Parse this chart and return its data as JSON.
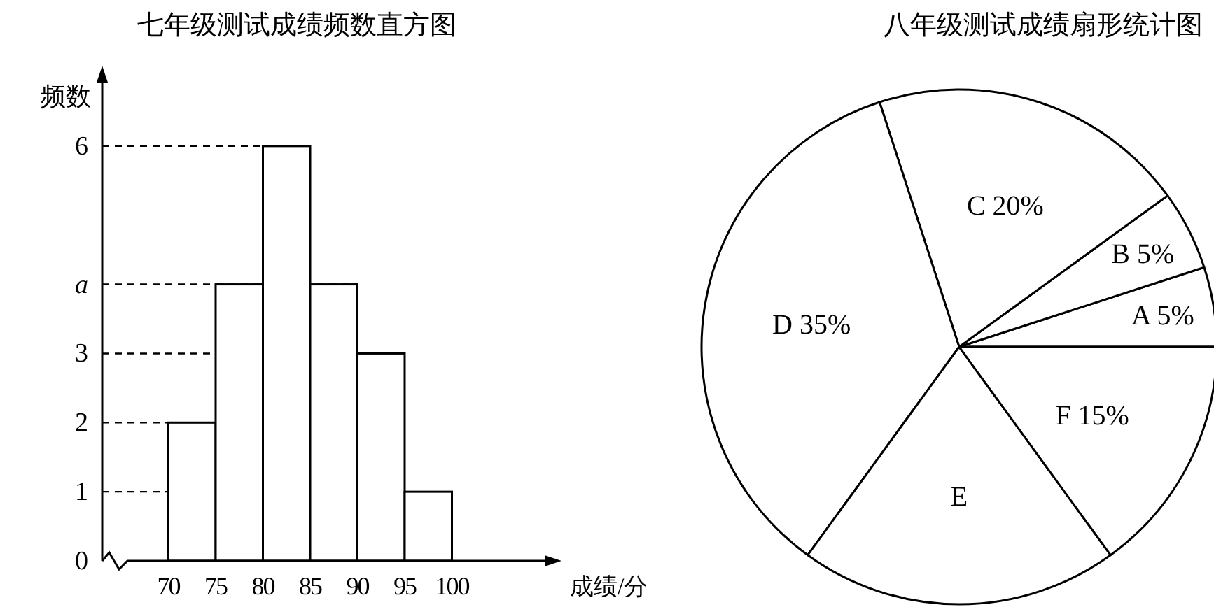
{
  "chart_data": [
    {
      "type": "histogram",
      "title": "七年级测试成绩频数直方图",
      "xlabel": "成绩/分",
      "ylabel": "频数",
      "bins": [
        70,
        75,
        80,
        85,
        90,
        95,
        100
      ],
      "values": [
        2,
        4,
        6,
        4,
        3,
        1
      ],
      "color": "#ffffff",
      "xlim": [
        63,
        111
      ],
      "ylim": [
        0,
        7
      ],
      "xticks": [
        70,
        75,
        80,
        85,
        90,
        95,
        100
      ],
      "yticks": [
        0,
        1,
        2,
        3,
        {
          "value": 4,
          "label": "a"
        },
        6
      ],
      "ref_lines": [
        {
          "axis": "y",
          "value": 1,
          "line_style": "dashed"
        },
        {
          "axis": "y",
          "value": 2,
          "line_style": "dashed"
        },
        {
          "axis": "y",
          "value": 3,
          "line_style": "dashed"
        },
        {
          "axis": "y",
          "value": 4,
          "line_style": "dashed"
        },
        {
          "axis": "y",
          "value": 6,
          "line_style": "dashed"
        }
      ]
    },
    {
      "type": "pie",
      "title": "八年级测试成绩扇形统计图",
      "categories": [
        "A",
        "B",
        "C",
        "D",
        "E",
        "F"
      ],
      "values": [
        5,
        5,
        20,
        35,
        20,
        15
      ],
      "value_labels": [
        "5%",
        "5%",
        "20%",
        "35%",
        null,
        "15%"
      ],
      "colors": [
        "#ffffff",
        "#ffffff",
        "#ffffff",
        "#ffffff",
        "#ffffff",
        "#ffffff"
      ]
    }
  ]
}
